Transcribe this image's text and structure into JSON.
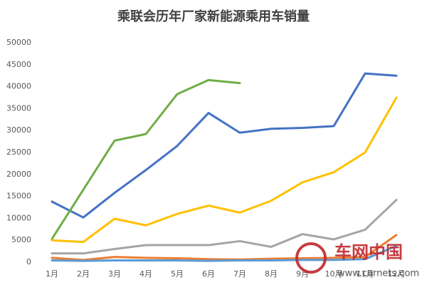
{
  "chart_data": {
    "type": "line",
    "title": "乘联会历年厂家新能源乘用车销量",
    "categories": [
      "1月",
      "2月",
      "3月",
      "4月",
      "5月",
      "6月",
      "7月",
      "8月",
      "9月",
      "10月",
      "11月",
      "12月"
    ],
    "ylim": [
      0,
      50000
    ],
    "yticks": [
      0,
      5000,
      10000,
      15000,
      20000,
      25000,
      30000,
      35000,
      40000,
      45000,
      50000
    ],
    "grid": false,
    "series": [
      {
        "color": "#4472c4",
        "values": [
          13800,
          10200,
          15800,
          21000,
          26500,
          34000,
          29500,
          30400,
          30600,
          31000,
          43000,
          42500
        ]
      },
      {
        "color": "#70ad47",
        "values": [
          5300,
          16500,
          27700,
          29200,
          38300,
          41500,
          40800,
          null,
          null,
          null,
          null,
          null
        ]
      },
      {
        "color": "#ffc000",
        "values": [
          5000,
          4600,
          9900,
          8400,
          11000,
          12900,
          11300,
          14000,
          18200,
          20500,
          25000,
          37500
        ]
      },
      {
        "color": "#a5a5a5",
        "values": [
          2000,
          2000,
          3000,
          3900,
          3900,
          3900,
          4800,
          3500,
          6400,
          5200,
          7400,
          14200
        ]
      },
      {
        "color": "#ed7d31",
        "values": [
          1000,
          500,
          1200,
          1000,
          900,
          700,
          600,
          800,
          900,
          1000,
          1200,
          6200
        ]
      },
      {
        "color": "#5b9bd5",
        "values": [
          400,
          300,
          400,
          400,
          400,
          300,
          400,
          400,
          500,
          500,
          700,
          3700
        ]
      }
    ]
  },
  "watermark": {
    "brand": "车网中国",
    "url": "www.carnets.com"
  }
}
